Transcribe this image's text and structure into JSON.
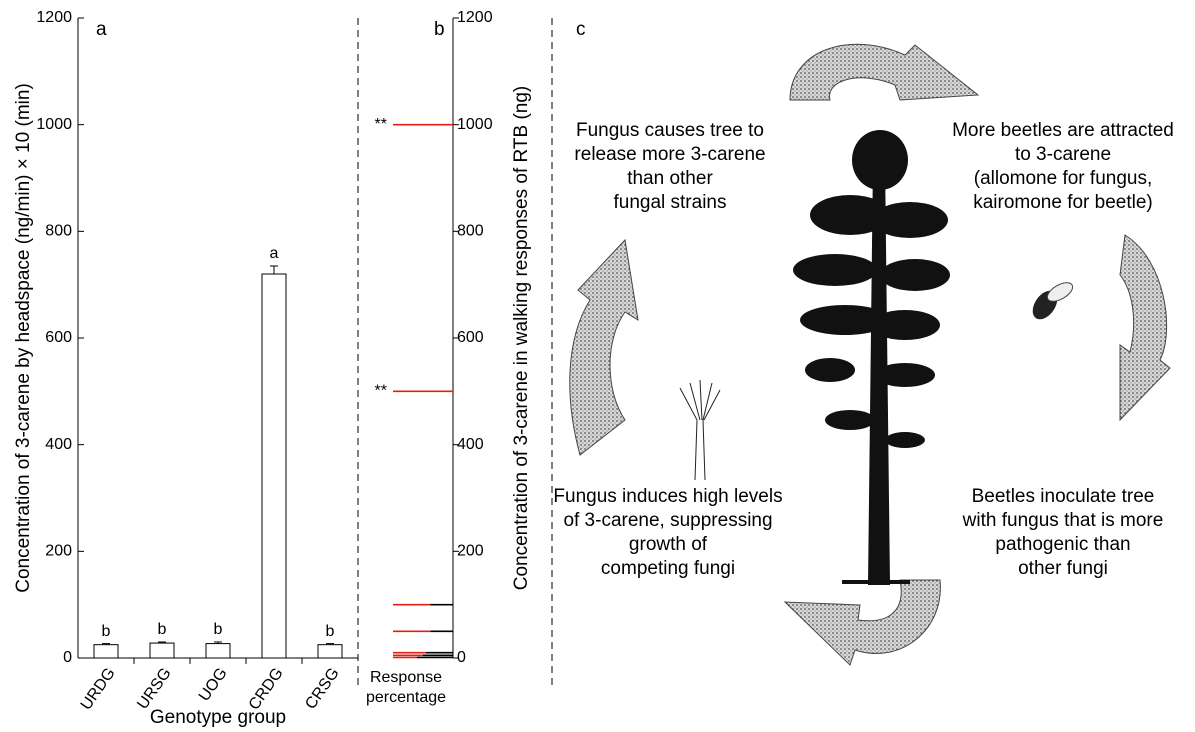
{
  "chart_data": [
    {
      "type": "bar",
      "panel": "a",
      "y_label": "Concentration of 3-carene by headspace (ng/min) × 10 (min)",
      "x_label": "Genotype group",
      "categories": [
        "URDG",
        "URSG",
        "UOG",
        "CRDG",
        "CRSG"
      ],
      "values": [
        25,
        28,
        27,
        720,
        25
      ],
      "errors": [
        2,
        2,
        3,
        15,
        2
      ],
      "letters": [
        "b",
        "b",
        "b",
        "a",
        "b"
      ],
      "color": "#ffffff",
      "ylim": [
        0,
        1200
      ],
      "yticks": [
        0,
        200,
        400,
        600,
        800,
        1000,
        1200
      ]
    },
    {
      "type": "segments",
      "panel": "b",
      "y_label": "Concentration of 3-carene in walking responses of RTB (ng)",
      "x_label": [
        "Response",
        "percentage"
      ],
      "concentrations": [
        1000,
        500,
        100,
        50,
        10,
        5,
        1
      ],
      "responses": [
        100,
        100,
        62,
        62,
        55,
        50,
        40
      ],
      "annotations": [
        "**",
        "**",
        null,
        null,
        null,
        null,
        null
      ],
      "response_color": "#e0201b",
      "rest_color": "#000000",
      "xlim": [
        0,
        100
      ],
      "ylim": [
        0,
        1200
      ],
      "yticks": [
        0,
        200,
        400,
        600,
        800,
        1000,
        1200
      ]
    }
  ],
  "diagram": {
    "label": "c",
    "texts": [
      [
        "Fungus causes tree to",
        "release more 3-carene",
        "than other",
        "fungal strains"
      ],
      [
        "More beetles are attracted",
        "to 3-carene",
        "(allomone for fungus,",
        "kairomone for beetle)"
      ],
      [
        "Fungus induces high levels",
        "of 3-carene, suppressing",
        "growth of",
        "competing fungi"
      ],
      [
        "Beetles inoculate tree",
        "with fungus that is more",
        "pathogenic than",
        "other fungi"
      ]
    ]
  }
}
